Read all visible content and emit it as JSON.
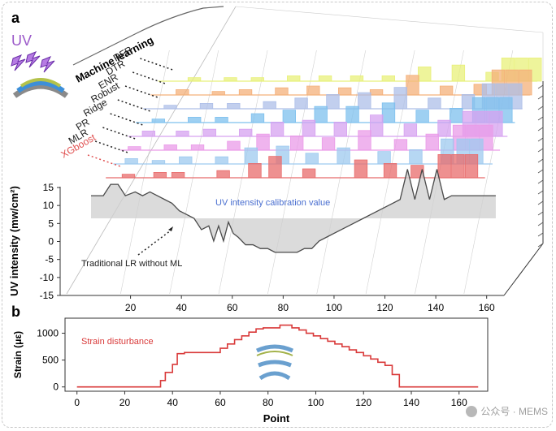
{
  "panel_a": {
    "label": "a",
    "uv_label": "UV",
    "ml_label": "Machine learning",
    "xgboost_label": "XGboost",
    "annotation_calibration": "UV intensity calibration  value",
    "annotation_lr": "Traditional LR without ML",
    "colors": {
      "uv_text": "#9b59c9",
      "xgboost": "#e05050",
      "baseline": "#4a4a4a"
    }
  },
  "panel_b": {
    "label": "b",
    "strain_label": "Strain disturbance",
    "line_color": "#d93a3a"
  },
  "watermark": "公众号 · MEMS",
  "chart_data": [
    {
      "type": "area",
      "panel": "a",
      "ylabel": "UV intensity (mw/cm²)",
      "yticks": [
        -15,
        -10,
        -5,
        0,
        5,
        10,
        15
      ],
      "xticks": [
        20,
        40,
        60,
        80,
        100,
        120,
        140,
        160
      ],
      "ylim": [
        -15,
        15
      ],
      "xlim": [
        0,
        170
      ],
      "series": [
        {
          "name": "Traditional LR without ML",
          "color": "#9a9a9a",
          "x": [
            0,
            5,
            8,
            11,
            14,
            18,
            21,
            24,
            27,
            30,
            33,
            36,
            39,
            42,
            45,
            48,
            50,
            52,
            54,
            56,
            58,
            60,
            63,
            66,
            69,
            72,
            75,
            78,
            81,
            84,
            87,
            90,
            93,
            96,
            99,
            102,
            105,
            108,
            111,
            114,
            117,
            120,
            123,
            126,
            129,
            132,
            135,
            138,
            141,
            144,
            147,
            150,
            153,
            156,
            159,
            162,
            165
          ],
          "y": [
            6,
            6,
            9,
            9,
            6,
            7,
            6,
            7,
            6,
            5,
            4,
            2,
            1,
            0,
            -3,
            -2,
            -6,
            -2,
            -6,
            -1,
            -4,
            -5,
            -7,
            -7,
            -8,
            -8,
            -9,
            -9,
            -9,
            -9,
            -8,
            -8,
            -6,
            -5,
            -4,
            -3,
            -2,
            -1,
            0,
            1,
            2,
            3,
            4,
            5,
            13,
            5,
            13,
            5,
            13,
            5,
            6,
            6,
            6,
            6,
            6,
            6,
            6
          ]
        },
        {
          "name": "XGboost",
          "color": "#e86b6b",
          "peaks": [
            [
              10,
              2
            ],
            [
              24,
              3
            ],
            [
              32,
              3
            ],
            [
              52,
              4
            ],
            [
              66,
              8
            ],
            [
              75,
              12
            ],
            [
              90,
              5
            ],
            [
              113,
              10
            ],
            [
              126,
              8
            ],
            [
              138,
              7
            ],
            [
              150,
              13
            ],
            [
              156,
              13
            ],
            [
              162,
              13
            ]
          ]
        },
        {
          "name": "MLR",
          "color": "#9ec9ef",
          "peaks": [
            [
              8,
              3
            ],
            [
              20,
              2
            ],
            [
              32,
              4
            ],
            [
              48,
              4
            ],
            [
              61,
              9
            ],
            [
              75,
              10
            ],
            [
              88,
              6
            ],
            [
              102,
              9
            ],
            [
              120,
              7
            ],
            [
              134,
              8
            ],
            [
              148,
              14
            ],
            [
              155,
              14
            ],
            [
              161,
              14
            ]
          ]
        },
        {
          "name": "PR",
          "color": "#ea9be8",
          "peaks": [
            [
              6,
              2
            ],
            [
              22,
              3
            ],
            [
              34,
              3
            ],
            [
              50,
              5
            ],
            [
              63,
              9
            ],
            [
              78,
              8
            ],
            [
              92,
              7
            ],
            [
              108,
              11
            ],
            [
              124,
              6
            ],
            [
              138,
              9
            ],
            [
              150,
              14
            ],
            [
              156,
              14
            ],
            [
              162,
              14
            ]
          ]
        },
        {
          "name": "Ridge",
          "color": "#d6a2f0",
          "peaks": [
            [
              9,
              3
            ],
            [
              24,
              3
            ],
            [
              36,
              4
            ],
            [
              52,
              4
            ],
            [
              66,
              8
            ],
            [
              80,
              9
            ],
            [
              94,
              8
            ],
            [
              110,
              12
            ],
            [
              125,
              7
            ],
            [
              140,
              9
            ],
            [
              151,
              14
            ],
            [
              157,
              14
            ],
            [
              163,
              14
            ]
          ]
        },
        {
          "name": "Robust",
          "color": "#7ec0ee",
          "peaks": [
            [
              10,
              2
            ],
            [
              26,
              3
            ],
            [
              38,
              3
            ],
            [
              54,
              5
            ],
            [
              68,
              7
            ],
            [
              82,
              9
            ],
            [
              96,
              9
            ],
            [
              112,
              11
            ],
            [
              127,
              7
            ],
            [
              142,
              8
            ],
            [
              152,
              14
            ],
            [
              158,
              14
            ],
            [
              164,
              14
            ]
          ]
        },
        {
          "name": "ENR",
          "color": "#aebfe8",
          "peaks": [
            [
              12,
              2
            ],
            [
              28,
              3
            ],
            [
              40,
              3
            ],
            [
              56,
              4
            ],
            [
              70,
              6
            ],
            [
              84,
              8
            ],
            [
              98,
              9
            ],
            [
              114,
              12
            ],
            [
              129,
              6
            ],
            [
              144,
              8
            ],
            [
              153,
              14
            ],
            [
              159,
              14
            ],
            [
              165,
              14
            ]
          ]
        },
        {
          "name": "DTR",
          "color": "#f4b07a",
          "peaks": [
            [
              14,
              3
            ],
            [
              30,
              2
            ],
            [
              42,
              3
            ],
            [
              58,
              4
            ],
            [
              72,
              5
            ],
            [
              86,
              4
            ],
            [
              100,
              3
            ],
            [
              116,
              11
            ],
            [
              131,
              5
            ],
            [
              146,
              6
            ],
            [
              154,
              14
            ],
            [
              160,
              14
            ],
            [
              166,
              14
            ]
          ]
        },
        {
          "name": "RFR",
          "color": "#e8f07a",
          "peaks": [
            [
              16,
              2
            ],
            [
              32,
              2
            ],
            [
              44,
              2
            ],
            [
              60,
              3
            ],
            [
              74,
              3
            ],
            [
              88,
              3
            ],
            [
              102,
              3
            ],
            [
              118,
              8
            ],
            [
              133,
              9
            ],
            [
              148,
              5
            ],
            [
              155,
              13
            ],
            [
              161,
              13
            ],
            [
              167,
              13
            ]
          ]
        }
      ]
    },
    {
      "type": "line",
      "panel": "b",
      "xlabel": "Point",
      "ylabel": "Strain (με)",
      "xlim": [
        -5,
        172
      ],
      "ylim": [
        -80,
        1280
      ],
      "xticks": [
        0,
        20,
        40,
        60,
        80,
        100,
        120,
        140,
        160
      ],
      "yticks": [
        0,
        500,
        1000
      ],
      "series": [
        {
          "name": "Strain disturbance",
          "x": [
            0,
            35,
            35,
            37,
            37,
            40,
            40,
            42,
            42,
            45,
            45,
            60,
            60,
            63,
            63,
            66,
            66,
            69,
            69,
            72,
            72,
            75,
            75,
            78,
            78,
            81,
            81,
            85,
            85,
            90,
            90,
            93,
            93,
            96,
            96,
            99,
            99,
            102,
            102,
            105,
            105,
            108,
            108,
            111,
            111,
            114,
            114,
            117,
            117,
            120,
            120,
            123,
            123,
            126,
            126,
            129,
            129,
            132,
            132,
            135,
            135,
            137,
            137,
            168
          ],
          "y": [
            0,
            0,
            120,
            120,
            270,
            270,
            420,
            420,
            620,
            620,
            640,
            640,
            720,
            720,
            800,
            800,
            880,
            880,
            950,
            950,
            1020,
            1020,
            1080,
            1080,
            1100,
            1100,
            1100,
            1100,
            1150,
            1150,
            1100,
            1100,
            1060,
            1060,
            1000,
            1000,
            950,
            950,
            900,
            900,
            850,
            850,
            800,
            800,
            750,
            750,
            690,
            690,
            640,
            640,
            580,
            580,
            520,
            520,
            460,
            460,
            400,
            400,
            230,
            230,
            0,
            0,
            0,
            0
          ]
        }
      ]
    }
  ]
}
